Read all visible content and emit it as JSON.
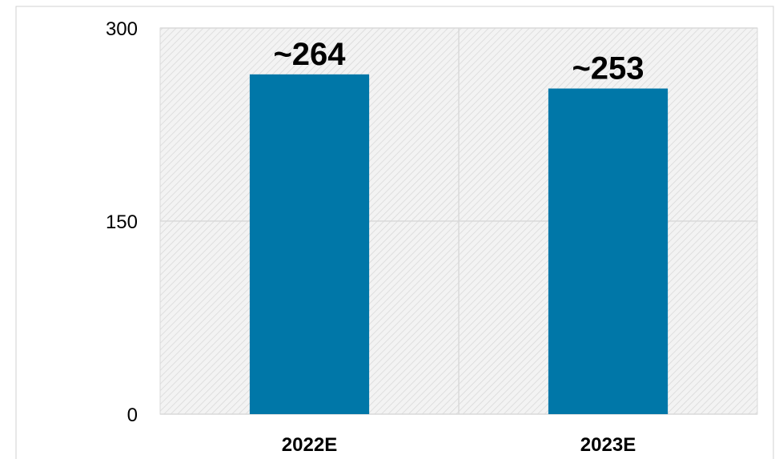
{
  "chart_data": {
    "type": "bar",
    "title": "",
    "xlabel": "",
    "ylabel": "",
    "categories": [
      "2022E",
      "2023E"
    ],
    "values": [
      264,
      253
    ],
    "data_labels": [
      "~264",
      "~253"
    ],
    "ylim": [
      0,
      300
    ],
    "yticks": [
      0,
      150,
      300
    ],
    "ytick_labels": [
      "0",
      "150",
      "300"
    ],
    "grid": true,
    "legend": "none",
    "colors": {
      "bar": "#0077a8",
      "plot_background": "#f3f3f3",
      "hatch": "#d8d8d8",
      "gridline": "#d9d9d9",
      "border": "#d0d0d0"
    }
  }
}
